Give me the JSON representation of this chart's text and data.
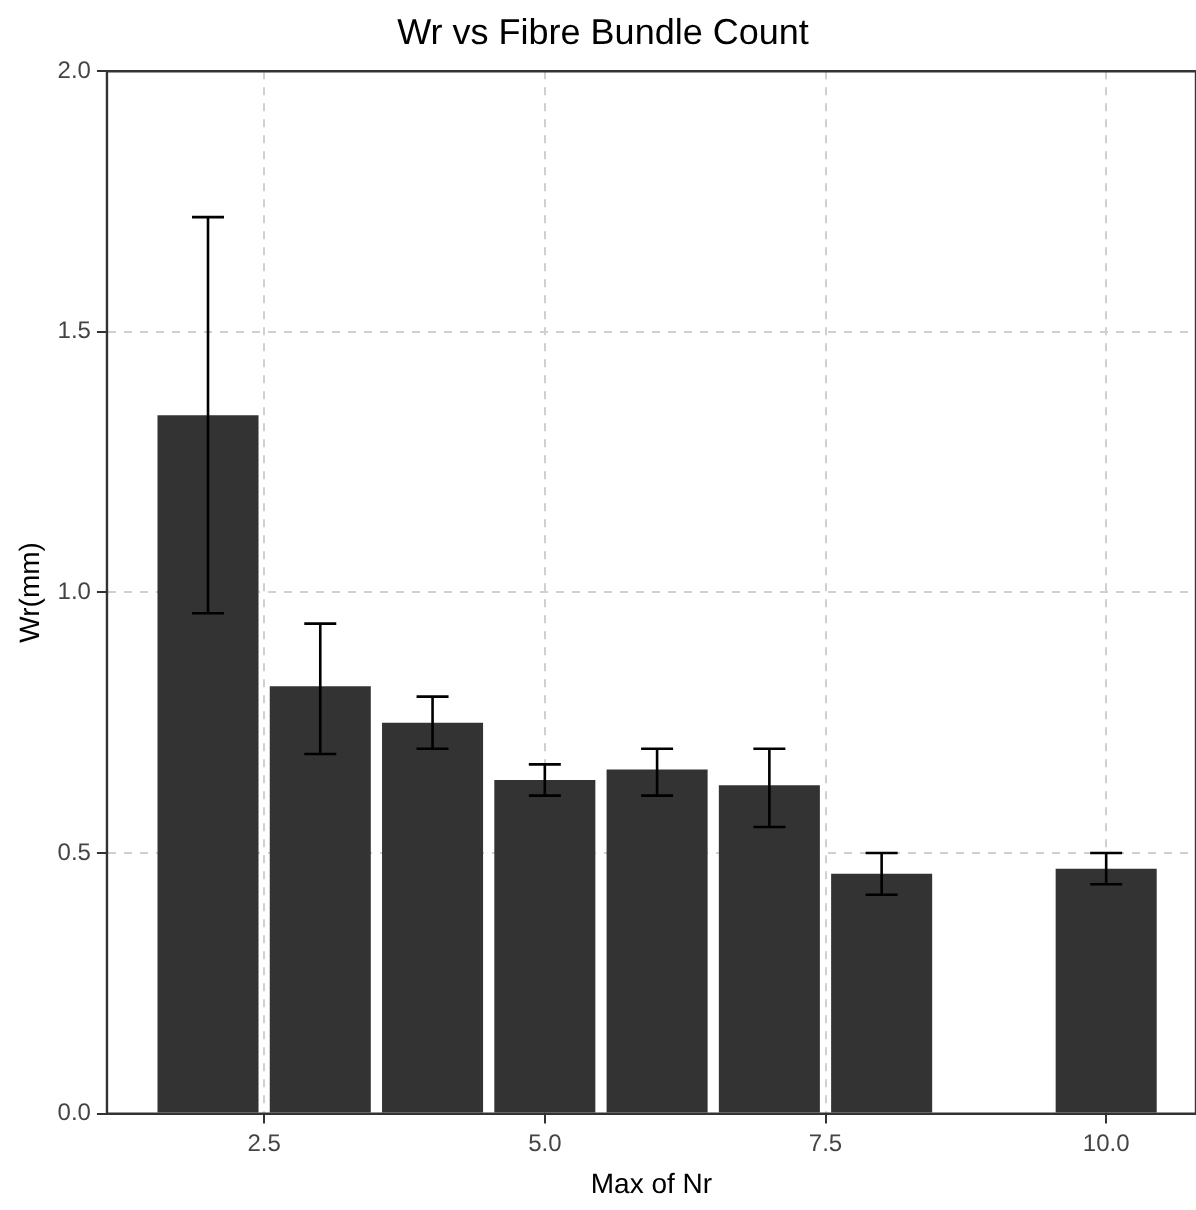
{
  "chart_data": {
    "type": "bar",
    "title": "Wr vs Fibre Bundle Count",
    "xlabel": "Max of Nr",
    "ylabel": "Wr(mm)",
    "x": [
      2,
      3,
      4,
      5,
      6,
      7,
      8,
      10
    ],
    "values": [
      1.34,
      0.82,
      0.75,
      0.64,
      0.66,
      0.63,
      0.46,
      0.47
    ],
    "errors": [
      [
        0.96,
        1.72
      ],
      [
        0.69,
        0.94
      ],
      [
        0.7,
        0.8
      ],
      [
        0.61,
        0.67
      ],
      [
        0.61,
        0.7
      ],
      [
        0.55,
        0.7
      ],
      [
        0.42,
        0.5
      ],
      [
        0.44,
        0.5
      ]
    ],
    "color": "#333333",
    "xlim": [
      1.1,
      10.8
    ],
    "xticks": [
      {
        "value": 2.5,
        "label": "2.5"
      },
      {
        "value": 5,
        "label": "5.0"
      },
      {
        "value": 7.5,
        "label": "7.5"
      },
      {
        "value": 10,
        "label": "10.0"
      }
    ],
    "ylim": [
      0,
      2
    ],
    "yticks": [
      {
        "value": 0,
        "label": "0.0"
      },
      {
        "value": 0.5,
        "label": "0.5"
      },
      {
        "value": 1,
        "label": "1.0"
      },
      {
        "value": 1.5,
        "label": "1.5"
      },
      {
        "value": 2,
        "label": "2.0"
      }
    ],
    "grid": true,
    "legend": false
  }
}
